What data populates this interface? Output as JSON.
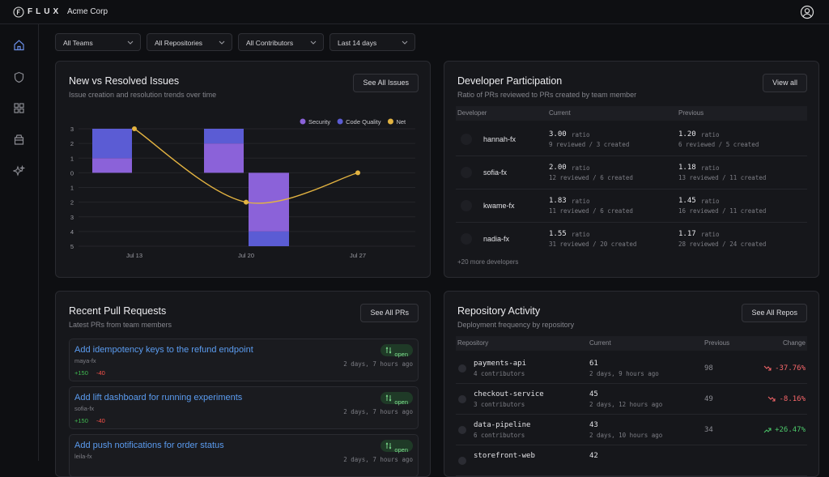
{
  "header": {
    "logo": "FLUX",
    "org": "Acme Corp"
  },
  "filters": [
    "All Teams",
    "All Repositories",
    "All Contributors",
    "Last 14 days"
  ],
  "chart_data": {
    "type": "bar",
    "title": "New vs Resolved Issues",
    "subtitle": "Issue creation and resolution trends over time",
    "button": "See All Issues",
    "categories": [
      "Jul 13",
      "Jul 20",
      "Jul 27"
    ],
    "series": [
      {
        "name": "Security",
        "color": "#8b62d9",
        "values": [
          1,
          2,
          0
        ],
        "resolved": [
          0,
          -4,
          0
        ]
      },
      {
        "name": "Code Quality",
        "color": "#5b5cd4",
        "values": [
          2,
          1,
          0
        ],
        "resolved": [
          0,
          -1,
          0
        ]
      },
      {
        "name": "Net",
        "type": "line",
        "color": "#e3b341",
        "values": [
          3,
          -2,
          0
        ]
      }
    ],
    "ylim": [
      -5,
      3
    ],
    "yticks": [
      3,
      2,
      1,
      0,
      {
        "value": -1,
        "label": "1"
      },
      {
        "value": -2,
        "label": "2"
      },
      {
        "value": -3,
        "label": "3"
      },
      {
        "value": -4,
        "label": "4"
      },
      {
        "value": -5,
        "label": "5"
      }
    ],
    "grid": true,
    "legend": "top-right"
  },
  "developers": {
    "title": "Developer Participation",
    "subtitle": "Ratio of PRs reviewed to PRs created by team member",
    "button": "View all",
    "columns": [
      "Developer",
      "Current",
      "Previous"
    ],
    "rows": [
      {
        "name": "hannah-fx",
        "current": {
          "ratio": "3.00",
          "unit": "ratio",
          "detail": "9 reviewed / 3 created"
        },
        "previous": {
          "ratio": "1.20",
          "unit": "ratio",
          "detail": "6 reviewed / 5 created"
        }
      },
      {
        "name": "sofia-fx",
        "current": {
          "ratio": "2.00",
          "unit": "ratio",
          "detail": "12 reviewed / 6 created"
        },
        "previous": {
          "ratio": "1.18",
          "unit": "ratio",
          "detail": "13 reviewed / 11 created"
        }
      },
      {
        "name": "kwame-fx",
        "current": {
          "ratio": "1.83",
          "unit": "ratio",
          "detail": "11 reviewed / 6 created"
        },
        "previous": {
          "ratio": "1.45",
          "unit": "ratio",
          "detail": "16 reviewed / 11 created"
        }
      },
      {
        "name": "nadia-fx",
        "current": {
          "ratio": "1.55",
          "unit": "ratio",
          "detail": "31 reviewed / 20 created"
        },
        "previous": {
          "ratio": "1.17",
          "unit": "ratio",
          "detail": "28 reviewed / 24 created"
        }
      }
    ],
    "more": "+20 more developers"
  },
  "pull_requests": {
    "title": "Recent Pull Requests",
    "subtitle": "Latest PRs from team members",
    "button": "See All PRs",
    "items": [
      {
        "title": "Add idempotency keys to the refund endpoint",
        "author": "maya-fx",
        "additions": "+150",
        "deletions": "-40",
        "status": "open",
        "time": "2 days, 7 hours ago"
      },
      {
        "title": "Add lift dashboard for running experiments",
        "author": "sofia-fx",
        "additions": "+150",
        "deletions": "-40",
        "status": "open",
        "time": "2 days, 7 hours ago"
      },
      {
        "title": "Add push notifications for order status",
        "author": "leila-fx",
        "status": "open",
        "time": "2 days, 7 hours ago"
      }
    ]
  },
  "repositories": {
    "title": "Repository Activity",
    "subtitle": "Deployment frequency by repository",
    "button": "See All Repos",
    "columns": [
      "Repository",
      "Current",
      "Previous",
      "Change"
    ],
    "rows": [
      {
        "name": "payments-api",
        "contributors": "4 contributors",
        "current": "61",
        "last": "2 days, 9 hours ago",
        "previous": "98",
        "change": "-37.76%"
      },
      {
        "name": "checkout-service",
        "contributors": "3 contributors",
        "current": "45",
        "last": "2 days, 12 hours ago",
        "previous": "49",
        "change": "-8.16%"
      },
      {
        "name": "data-pipeline",
        "contributors": "6 contributors",
        "current": "43",
        "last": "2 days, 10 hours ago",
        "previous": "34",
        "change": "+26.47%"
      },
      {
        "name": "storefront-web",
        "current": "42"
      }
    ]
  }
}
